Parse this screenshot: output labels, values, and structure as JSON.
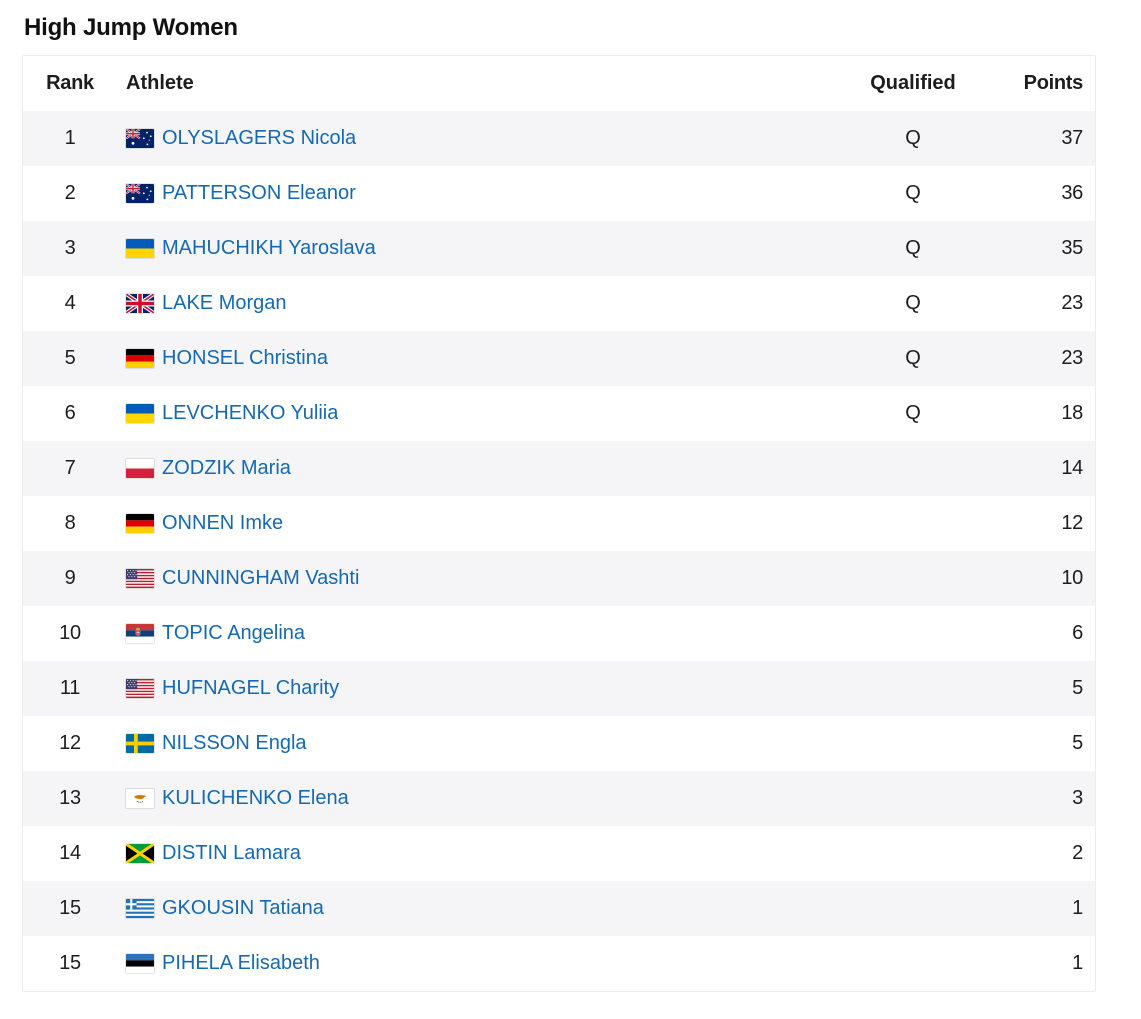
{
  "page": {
    "title": "High Jump Women"
  },
  "colors": {
    "athlete_link": "#1669b0",
    "row_stripe": "#f5f5f7",
    "text": "#1d1d1f"
  },
  "table": {
    "headers": {
      "rank": "Rank",
      "athlete": "Athlete",
      "qualified": "Qualified",
      "points": "Points"
    },
    "rows": [
      {
        "rank": "1",
        "country": "AUS",
        "flag_icon": "australia-flag-icon",
        "athlete": "OLYSLAGERS Nicola",
        "qualified": "Q",
        "points": "37"
      },
      {
        "rank": "2",
        "country": "AUS",
        "flag_icon": "australia-flag-icon",
        "athlete": "PATTERSON Eleanor",
        "qualified": "Q",
        "points": "36"
      },
      {
        "rank": "3",
        "country": "UKR",
        "flag_icon": "ukraine-flag-icon",
        "athlete": "MAHUCHIKH Yaroslava",
        "qualified": "Q",
        "points": "35"
      },
      {
        "rank": "4",
        "country": "GBR",
        "flag_icon": "great-britain-flag-icon",
        "athlete": "LAKE Morgan",
        "qualified": "Q",
        "points": "23"
      },
      {
        "rank": "5",
        "country": "GER",
        "flag_icon": "germany-flag-icon",
        "athlete": "HONSEL Christina",
        "qualified": "Q",
        "points": "23"
      },
      {
        "rank": "6",
        "country": "UKR",
        "flag_icon": "ukraine-flag-icon",
        "athlete": "LEVCHENKO Yuliia",
        "qualified": "Q",
        "points": "18"
      },
      {
        "rank": "7",
        "country": "POL",
        "flag_icon": "poland-flag-icon",
        "athlete": "ZODZIK Maria",
        "qualified": "",
        "points": "14"
      },
      {
        "rank": "8",
        "country": "GER",
        "flag_icon": "germany-flag-icon",
        "athlete": "ONNEN Imke",
        "qualified": "",
        "points": "12"
      },
      {
        "rank": "9",
        "country": "USA",
        "flag_icon": "usa-flag-icon",
        "athlete": "CUNNINGHAM Vashti",
        "qualified": "",
        "points": "10"
      },
      {
        "rank": "10",
        "country": "SRB",
        "flag_icon": "serbia-flag-icon",
        "athlete": "TOPIC Angelina",
        "qualified": "",
        "points": "6"
      },
      {
        "rank": "11",
        "country": "USA",
        "flag_icon": "usa-flag-icon",
        "athlete": "HUFNAGEL Charity",
        "qualified": "",
        "points": "5"
      },
      {
        "rank": "12",
        "country": "SWE",
        "flag_icon": "sweden-flag-icon",
        "athlete": "NILSSON Engla",
        "qualified": "",
        "points": "5"
      },
      {
        "rank": "13",
        "country": "CYP",
        "flag_icon": "cyprus-flag-icon",
        "athlete": "KULICHENKO Elena",
        "qualified": "",
        "points": "3"
      },
      {
        "rank": "14",
        "country": "JAM",
        "flag_icon": "jamaica-flag-icon",
        "athlete": "DISTIN Lamara",
        "qualified": "",
        "points": "2"
      },
      {
        "rank": "15",
        "country": "GRE",
        "flag_icon": "greece-flag-icon",
        "athlete": "GKOUSIN Tatiana",
        "qualified": "",
        "points": "1"
      },
      {
        "rank": "15",
        "country": "EST",
        "flag_icon": "estonia-flag-icon",
        "athlete": "PIHELA Elisabeth",
        "qualified": "",
        "points": "1"
      }
    ]
  }
}
